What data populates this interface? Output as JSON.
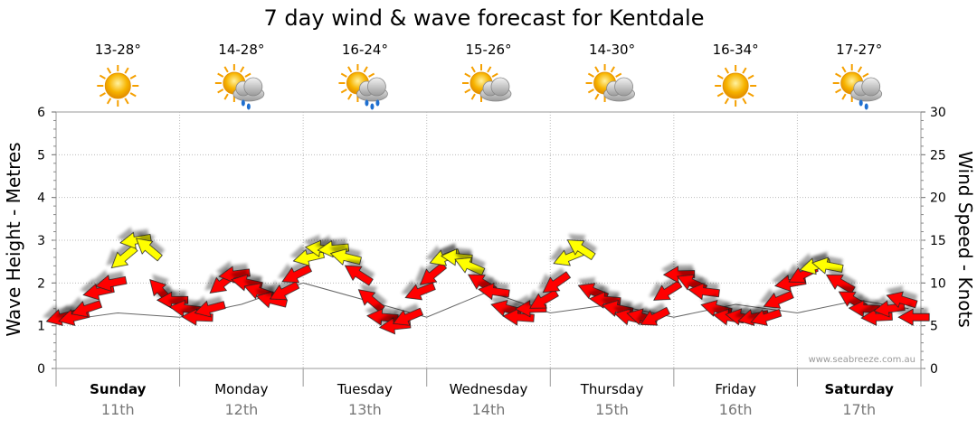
{
  "chart_data": {
    "type": "line",
    "title": "7 day wind & wave forecast for Kentdale",
    "ylabel_left": "Wave Height - Metres",
    "ylabel_right": "Wind Speed - Knots",
    "ylim_left": [
      0,
      6
    ],
    "ylim_right": [
      0,
      30
    ],
    "y_ticks_left": [
      "0",
      "1",
      "2",
      "3",
      "4",
      "5",
      "6"
    ],
    "y_ticks_right": [
      "0",
      "5",
      "10",
      "15",
      "20",
      "25",
      "30"
    ],
    "grid": true,
    "credit": "www.seabreeze.com.au",
    "days": [
      {
        "day": "Sunday",
        "date": "11th",
        "temp": "13-28°",
        "icon": "sun-icon",
        "bold": true
      },
      {
        "day": "Monday",
        "date": "12th",
        "temp": "14-28°",
        "icon": "sun-cloud-rain-icon",
        "bold": false
      },
      {
        "day": "Tuesday",
        "date": "13th",
        "temp": "16-24°",
        "icon": "sun-cloud-heavy-rain-icon",
        "bold": false
      },
      {
        "day": "Wednesday",
        "date": "14th",
        "temp": "15-26°",
        "icon": "sun-cloud-icon",
        "bold": false
      },
      {
        "day": "Thursday",
        "date": "15th",
        "temp": "14-30°",
        "icon": "sun-cloud-icon",
        "bold": false
      },
      {
        "day": "Friday",
        "date": "16th",
        "temp": "16-34°",
        "icon": "sun-icon",
        "bold": false
      },
      {
        "day": "Saturday",
        "date": "17th",
        "temp": "17-27°",
        "icon": "sun-cloud-rain-icon",
        "bold": true
      }
    ],
    "series": [
      {
        "name": "Wind Speed (knots)",
        "x_days": [
          0.0,
          0.1,
          0.2,
          0.3,
          0.4,
          0.5,
          0.6,
          0.7,
          0.8,
          0.9,
          1.0,
          1.1,
          1.2,
          1.3,
          1.4,
          1.5,
          1.6,
          1.7,
          1.8,
          1.9,
          2.0,
          2.1,
          2.2,
          2.3,
          2.4,
          2.5,
          2.6,
          2.7,
          2.8,
          2.9,
          3.0,
          3.1,
          3.2,
          3.3,
          3.4,
          3.5,
          3.6,
          3.7,
          3.8,
          3.9,
          4.0,
          4.1,
          4.2,
          4.3,
          4.4,
          4.5,
          4.6,
          4.7,
          4.8,
          4.9,
          5.0,
          5.1,
          5.2,
          5.3,
          5.4,
          5.5,
          5.6,
          5.7,
          5.8,
          5.9,
          6.0,
          6.1,
          6.2,
          6.3,
          6.4,
          6.5,
          6.6,
          6.7,
          6.8,
          6.9
        ],
        "values": [
          6,
          6,
          7,
          9,
          10,
          13,
          15,
          14,
          9,
          8,
          7,
          6,
          7,
          10,
          11,
          10,
          9,
          8,
          9,
          11,
          13,
          14,
          14,
          13,
          11,
          8,
          6,
          5,
          6,
          9,
          11,
          13,
          13,
          12,
          10,
          9,
          7,
          6,
          7,
          8,
          10,
          13,
          14,
          9,
          8,
          7,
          6,
          6,
          6,
          9,
          11,
          10,
          9,
          7,
          6,
          6,
          6,
          6,
          8,
          10,
          11,
          12,
          12,
          10,
          8,
          7,
          6,
          7,
          8,
          6
        ]
      },
      {
        "name": "Wave Height (m)",
        "x_days": [
          0.0,
          0.5,
          1.0,
          1.5,
          2.0,
          2.5,
          3.0,
          3.5,
          4.0,
          4.5,
          5.0,
          5.5,
          6.0,
          6.5,
          6.9
        ],
        "values": [
          1.1,
          1.3,
          1.2,
          1.5,
          2.0,
          1.6,
          1.2,
          1.8,
          1.3,
          1.5,
          1.2,
          1.5,
          1.3,
          1.6,
          1.4
        ]
      }
    ]
  }
}
